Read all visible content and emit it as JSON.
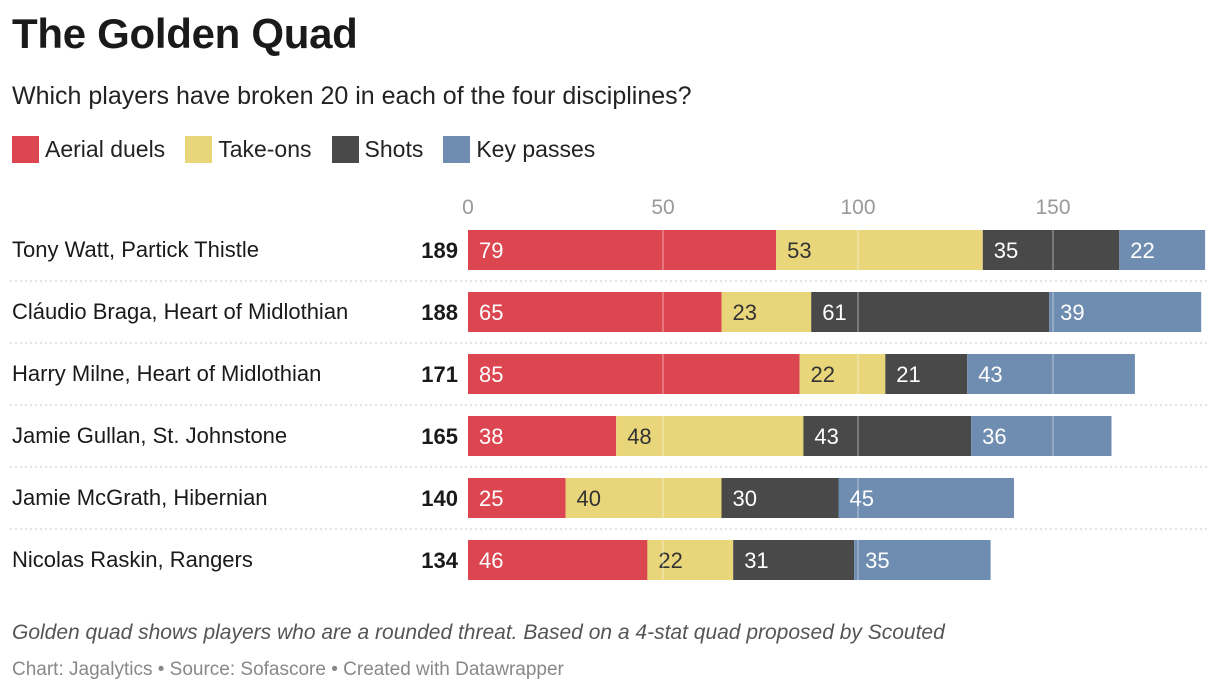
{
  "title": "The Golden Quad",
  "subtitle": "Which players have broken 20 in each of the four disciplines?",
  "legend": [
    {
      "label": "Aerial duels",
      "color": "#dc4650"
    },
    {
      "label": "Take-ons",
      "color": "#e9d67b"
    },
    {
      "label": "Shots",
      "color": "#494949"
    },
    {
      "label": "Key passes",
      "color": "#6f8db0"
    }
  ],
  "note": "Golden quad shows players who are a rounded threat. Based on a 4-stat quad proposed by Scouted",
  "source": "Chart: Jagalytics • Source: Sofascore • Created with Datawrapper",
  "chart_data": {
    "type": "bar",
    "orientation": "horizontal",
    "stacked": true,
    "x_ticks": [
      0,
      50,
      100,
      150
    ],
    "xlim": [
      0,
      189
    ],
    "categories": [
      "Tony Watt, Partick Thistle",
      "Cláudio Braga, Heart of Midlothian",
      "Harry Milne, Heart of Midlothian",
      "Jamie Gullan, St. Johnstone",
      "Jamie McGrath, Hibernian",
      "Nicolas Raskin, Rangers"
    ],
    "totals": [
      189,
      188,
      171,
      165,
      140,
      134
    ],
    "series": [
      {
        "name": "Aerial duels",
        "color": "#dc4650",
        "label_color": "#ffffff",
        "values": [
          79,
          65,
          85,
          38,
          25,
          46
        ]
      },
      {
        "name": "Take-ons",
        "color": "#e9d67b",
        "label_color": "#333333",
        "values": [
          53,
          23,
          22,
          48,
          40,
          22
        ]
      },
      {
        "name": "Shots",
        "color": "#494949",
        "label_color": "#ffffff",
        "values": [
          35,
          61,
          21,
          43,
          30,
          31
        ]
      },
      {
        "name": "Key passes",
        "color": "#6f8db0",
        "label_color": "#ffffff",
        "values": [
          22,
          39,
          43,
          36,
          45,
          35
        ]
      }
    ]
  }
}
